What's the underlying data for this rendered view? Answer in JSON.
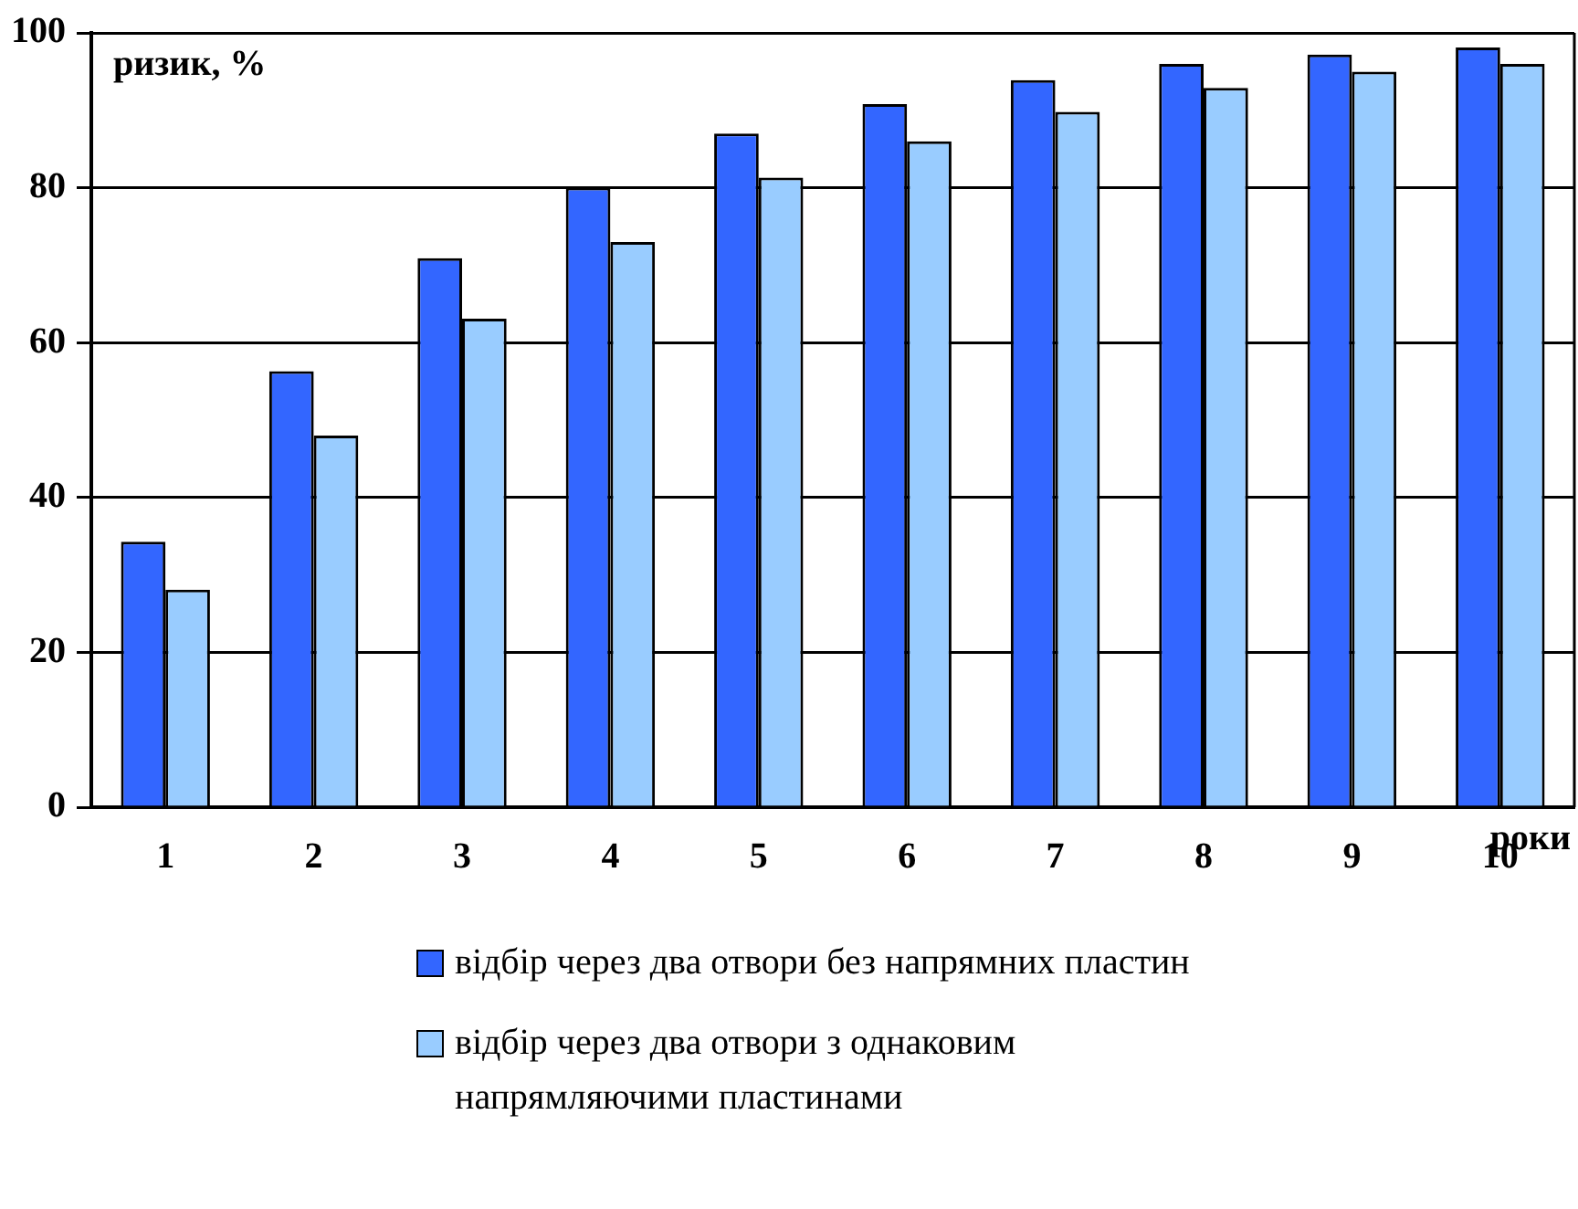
{
  "chart_data": {
    "type": "bar",
    "ylabel": "ризик, %",
    "xlabel": "роки",
    "categories": [
      "1",
      "2",
      "3",
      "4",
      "5",
      "6",
      "7",
      "8",
      "9",
      "10"
    ],
    "series": [
      {
        "name": "відбір через два отвори без напрямних пластин",
        "color": "#3366ff",
        "values": [
          34.3,
          56.3,
          70.9,
          80,
          87,
          90.8,
          93.9,
          96,
          97.2,
          98.1
        ]
      },
      {
        "name": "відбір через два отвори з однаковим напрямляючими пластинами",
        "color": "#99ccff",
        "values": [
          28.1,
          48,
          63.1,
          73,
          81.3,
          86,
          89.8,
          92.9,
          95,
          96
        ]
      }
    ],
    "ylim": [
      0,
      100
    ],
    "yticks": [
      0,
      20,
      40,
      60,
      80,
      100
    ],
    "grid": "y",
    "legend": "bottom"
  }
}
